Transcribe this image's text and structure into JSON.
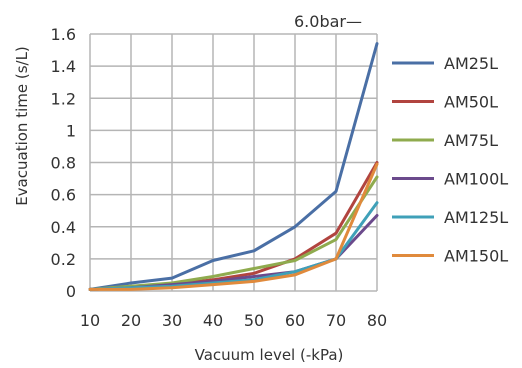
{
  "chart_data": {
    "type": "line",
    "title": "",
    "annotation": "6.0bar—",
    "xlabel": "Vacuum level  (-kPa)",
    "ylabel": "Evacuation time (s/L)",
    "x": [
      10,
      20,
      30,
      40,
      50,
      60,
      70,
      80
    ],
    "xlim": [
      10,
      80
    ],
    "ylim": [
      0,
      1.6
    ],
    "x_ticks": [
      "10",
      "20",
      "30",
      "40",
      "50",
      "60",
      "70",
      "80"
    ],
    "y_ticks": [
      "0",
      "0.2",
      "0.4",
      "0.6",
      "0.8",
      "1",
      "1.2",
      "1.4",
      "1.6"
    ],
    "grid": true,
    "legend_position": "right",
    "series": [
      {
        "name": "AM25L",
        "color": "#4a6fa5",
        "values": [
          0.01,
          0.05,
          0.08,
          0.19,
          0.25,
          0.4,
          0.62,
          1.54
        ]
      },
      {
        "name": "AM50L",
        "color": "#b1443f",
        "values": [
          0.01,
          0.02,
          0.04,
          0.07,
          0.11,
          0.2,
          0.36,
          0.8
        ]
      },
      {
        "name": "AM75L",
        "color": "#8fab4e",
        "values": [
          0.01,
          0.03,
          0.05,
          0.09,
          0.14,
          0.19,
          0.32,
          0.71
        ]
      },
      {
        "name": "AM100L",
        "color": "#6b4a8c",
        "values": [
          0.01,
          0.02,
          0.04,
          0.06,
          0.09,
          0.12,
          0.2,
          0.47
        ]
      },
      {
        "name": "AM125L",
        "color": "#3fa0b8",
        "values": [
          0.01,
          0.02,
          0.03,
          0.05,
          0.07,
          0.12,
          0.2,
          0.55
        ]
      },
      {
        "name": "AM150L",
        "color": "#e08a3c",
        "values": [
          0.01,
          0.01,
          0.02,
          0.04,
          0.06,
          0.1,
          0.2,
          0.79
        ]
      }
    ]
  }
}
